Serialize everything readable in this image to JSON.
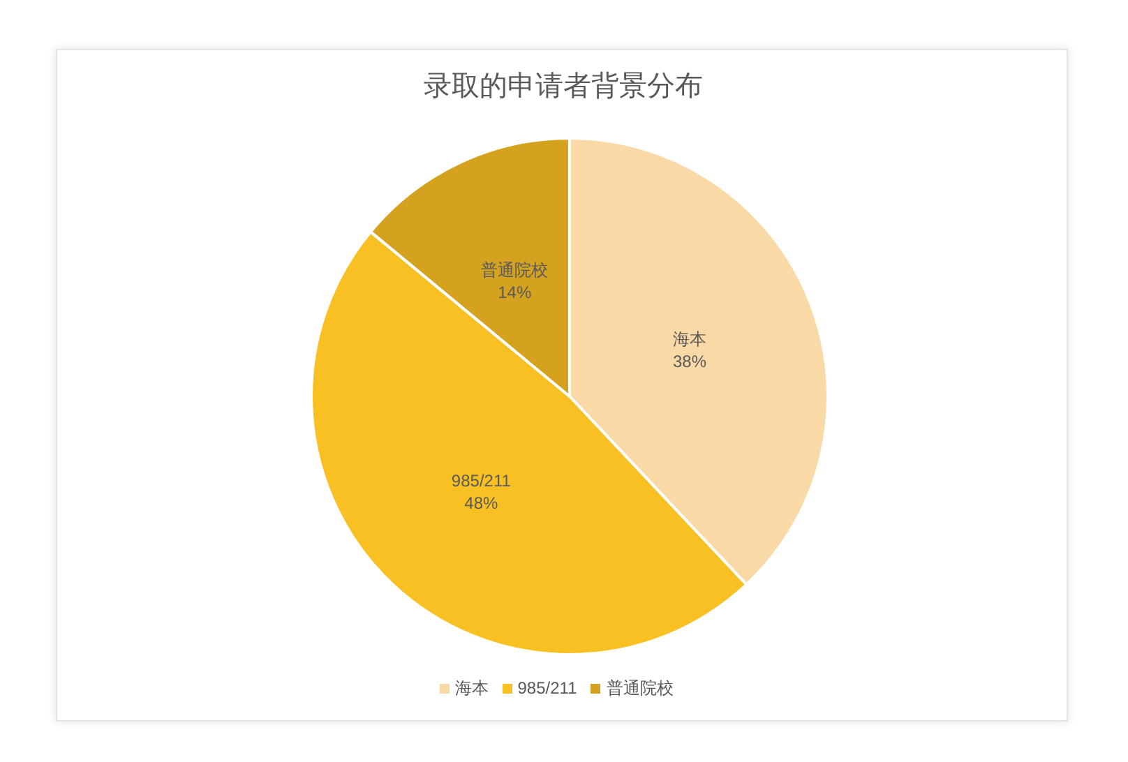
{
  "chart_data": {
    "type": "pie",
    "title": "录取的申请者背景分布",
    "categories": [
      "海本",
      "985/211",
      "普通院校"
    ],
    "values": [
      38,
      48,
      14
    ],
    "colors": [
      "#f9d9a6",
      "#f8c022",
      "#d4a21e"
    ],
    "value_labels": [
      "38%",
      "48%",
      "14%"
    ],
    "legend": "bottom"
  }
}
